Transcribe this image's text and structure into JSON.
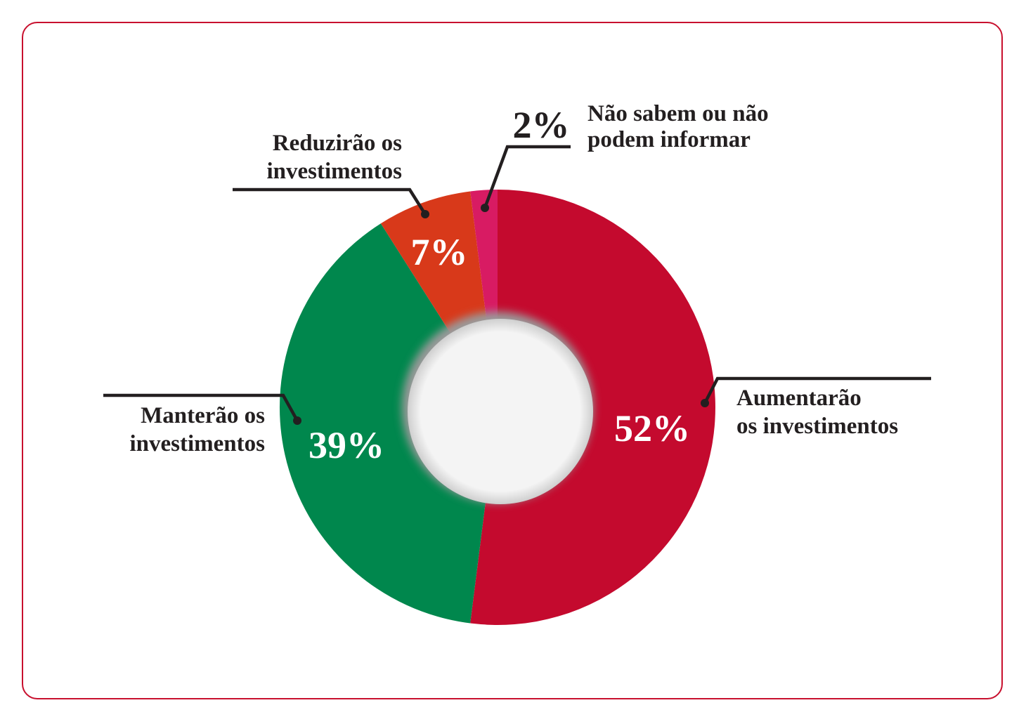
{
  "chart_data": {
    "type": "pie",
    "style": "donut",
    "title": "",
    "slices": [
      {
        "label": "Aumentarão os investimentos",
        "label_lines": [
          "Aumentarão",
          "os investimentos"
        ],
        "value": 52,
        "value_label": "52%",
        "color": "#c40a2e"
      },
      {
        "label": "Manterão os investimentos",
        "label_lines": [
          "Manterão os",
          "investimentos"
        ],
        "value": 39,
        "value_label": "39%",
        "color": "#00874d"
      },
      {
        "label": "Reduzirão os investimentos",
        "label_lines": [
          "Reduzirão os",
          "investimentos"
        ],
        "value": 7,
        "value_label": "7%",
        "color": "#d8391a"
      },
      {
        "label": "Não sabem ou não podem informar",
        "label_lines": [
          "Não sabem ou não",
          "podem informar"
        ],
        "value": 2,
        "value_label": "2%",
        "color": "#d81b63"
      }
    ]
  },
  "colors": {
    "frame_border": "#c8102e",
    "text": "#231f20",
    "center_fill": "#f4f4f4"
  }
}
